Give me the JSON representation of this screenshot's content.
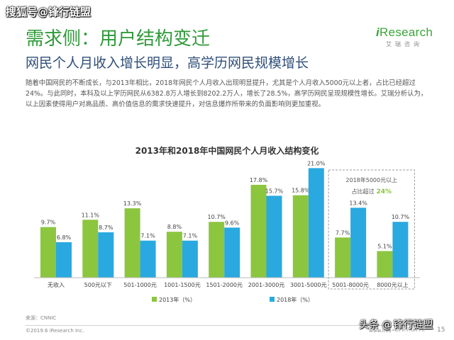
{
  "watermark_top": "搜狐号@锋行链盟",
  "logo": {
    "prefix": "i",
    "name": "Research",
    "subtitle": "艾瑞咨询"
  },
  "header": {
    "title": "需求侧：用户结构变迁",
    "subtitle": "网民个人月收入增长明显，高学历网民规模增长"
  },
  "body_text": "随着中国网民的不断成长，与2013年相比，2018年网民个人月收入出现明显提升，尤其是个人月收入5000元以上者，占比已经超过24%。与此同时，本科及以上学历网民从6382.8万人增长到8202.2万人，增长了28.5%，高学历网民呈现规模性增长。艾瑞分析认为，以上因素使得用户对高品质、高价值信息的需求快速提升，对信息爆炸所带来的负面影响则更加重视。",
  "chart_data": {
    "type": "bar",
    "title": "2013年和2018年中国网民个人月收入结构变化",
    "categories": [
      "无收入",
      "500元以下",
      "501-1000元",
      "1001-1500元",
      "1501-2000元",
      "2001-3000元",
      "3001-5000元",
      "5001-8000元",
      "8000元以上"
    ],
    "series": [
      {
        "name": "2013年（%）",
        "values": [
          9.7,
          11.1,
          13.3,
          8.8,
          10.7,
          17.8,
          15.8,
          7.7,
          5.1
        ],
        "labels": [
          "9.7%",
          "11.1%",
          "13.3%",
          "8.8%",
          "10.7%",
          "17.8%",
          "15.8%",
          "7.7%",
          "5.1%"
        ],
        "color": "#8cc63f"
      },
      {
        "name": "2018年（%）",
        "values": [
          6.8,
          8.7,
          7.1,
          7.1,
          9.6,
          15.7,
          21.0,
          13.4,
          10.7
        ],
        "labels": [
          "6.8%",
          "8.7%",
          "7.1%",
          "7.1%",
          "9.6%",
          "15.7%",
          "21.0%",
          "13.4%",
          "10.7%"
        ],
        "color": "#29a9e0"
      }
    ],
    "ylim": [
      0,
      22
    ],
    "grid": false,
    "legend": "bottom",
    "annotation": {
      "line1": "2018年5000元以上",
      "line2_prefix": "占比超过",
      "line2_value": "24%",
      "highlight_color": "#8cc63f"
    }
  },
  "footer": {
    "source": "来源：CNNIC",
    "copyright": "©2019.6 iResearch Inc.",
    "website": "www.iresearch.com.cn",
    "page": "15"
  },
  "watermark_bottom": {
    "prefix": "头条 @",
    "name": "锋行链盟"
  }
}
